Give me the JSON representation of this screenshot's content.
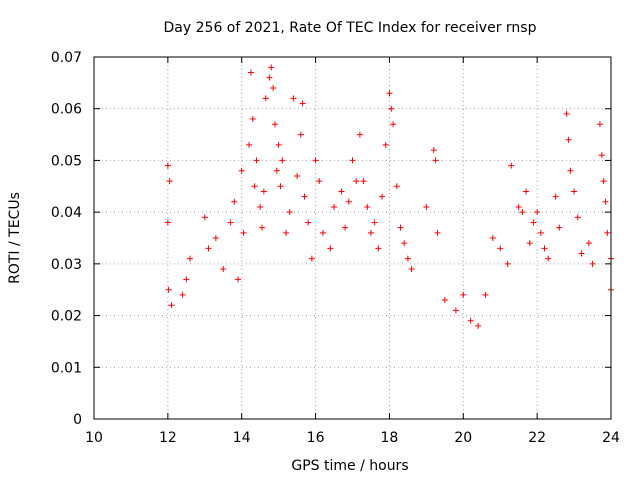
{
  "chart_data": {
    "type": "scatter",
    "title": "Day 256 of 2021, Rate Of TEC Index for receiver rnsp",
    "xlabel": "GPS time / hours",
    "ylabel": "ROTI / TECUs",
    "xlim": [
      10,
      24
    ],
    "ylim": [
      0,
      0.07
    ],
    "x_ticks": [
      10,
      12,
      14,
      16,
      18,
      20,
      22,
      24
    ],
    "x_tick_labels": [
      "10",
      "12",
      "14",
      "16",
      "18",
      "20",
      "22",
      "24"
    ],
    "y_ticks": [
      0,
      0.01,
      0.02,
      0.03,
      0.04,
      0.05,
      0.06,
      0.07
    ],
    "y_tick_labels": [
      "0",
      "0.01",
      "0.02",
      "0.03",
      "0.04",
      "0.05",
      "0.06",
      "0.07"
    ],
    "grid": true,
    "marker": "+",
    "color": "#ff0000",
    "series": [
      {
        "name": "ROTI",
        "points": [
          [
            12.0,
            0.038
          ],
          [
            12.0,
            0.049
          ],
          [
            12.05,
            0.046
          ],
          [
            12.02,
            0.025
          ],
          [
            12.1,
            0.022
          ],
          [
            12.4,
            0.024
          ],
          [
            12.5,
            0.027
          ],
          [
            12.6,
            0.031
          ],
          [
            13.0,
            0.039
          ],
          [
            13.1,
            0.033
          ],
          [
            13.3,
            0.035
          ],
          [
            13.5,
            0.029
          ],
          [
            13.7,
            0.038
          ],
          [
            13.8,
            0.042
          ],
          [
            13.9,
            0.027
          ],
          [
            14.0,
            0.048
          ],
          [
            14.05,
            0.036
          ],
          [
            14.2,
            0.053
          ],
          [
            14.25,
            0.067
          ],
          [
            14.3,
            0.058
          ],
          [
            14.35,
            0.045
          ],
          [
            14.4,
            0.05
          ],
          [
            14.5,
            0.041
          ],
          [
            14.55,
            0.037
          ],
          [
            14.6,
            0.044
          ],
          [
            14.65,
            0.062
          ],
          [
            14.75,
            0.066
          ],
          [
            14.8,
            0.068
          ],
          [
            14.85,
            0.064
          ],
          [
            14.9,
            0.057
          ],
          [
            14.95,
            0.048
          ],
          [
            15.0,
            0.053
          ],
          [
            15.05,
            0.045
          ],
          [
            15.1,
            0.05
          ],
          [
            15.2,
            0.036
          ],
          [
            15.3,
            0.04
          ],
          [
            15.4,
            0.062
          ],
          [
            15.5,
            0.047
          ],
          [
            15.6,
            0.055
          ],
          [
            15.65,
            0.061
          ],
          [
            15.7,
            0.043
          ],
          [
            15.8,
            0.038
          ],
          [
            15.9,
            0.031
          ],
          [
            16.0,
            0.05
          ],
          [
            16.1,
            0.046
          ],
          [
            16.2,
            0.036
          ],
          [
            16.4,
            0.033
          ],
          [
            16.5,
            0.041
          ],
          [
            16.7,
            0.044
          ],
          [
            16.8,
            0.037
          ],
          [
            16.9,
            0.042
          ],
          [
            17.0,
            0.05
          ],
          [
            17.1,
            0.046
          ],
          [
            17.2,
            0.055
          ],
          [
            17.3,
            0.046
          ],
          [
            17.4,
            0.041
          ],
          [
            17.5,
            0.036
          ],
          [
            17.6,
            0.038
          ],
          [
            17.7,
            0.033
          ],
          [
            17.8,
            0.043
          ],
          [
            17.9,
            0.053
          ],
          [
            18.0,
            0.063
          ],
          [
            18.05,
            0.06
          ],
          [
            18.1,
            0.057
          ],
          [
            18.2,
            0.045
          ],
          [
            18.3,
            0.037
          ],
          [
            18.4,
            0.034
          ],
          [
            18.5,
            0.031
          ],
          [
            18.6,
            0.029
          ],
          [
            19.0,
            0.041
          ],
          [
            19.2,
            0.052
          ],
          [
            19.25,
            0.05
          ],
          [
            19.3,
            0.036
          ],
          [
            19.5,
            0.023
          ],
          [
            19.8,
            0.021
          ],
          [
            20.0,
            0.024
          ],
          [
            20.2,
            0.019
          ],
          [
            20.4,
            0.018
          ],
          [
            20.6,
            0.024
          ],
          [
            20.8,
            0.035
          ],
          [
            21.0,
            0.033
          ],
          [
            21.2,
            0.03
          ],
          [
            21.3,
            0.049
          ],
          [
            21.5,
            0.041
          ],
          [
            21.6,
            0.04
          ],
          [
            21.7,
            0.044
          ],
          [
            21.8,
            0.034
          ],
          [
            21.9,
            0.038
          ],
          [
            22.0,
            0.04
          ],
          [
            22.1,
            0.036
          ],
          [
            22.2,
            0.033
          ],
          [
            22.3,
            0.031
          ],
          [
            22.5,
            0.043
          ],
          [
            22.6,
            0.037
          ],
          [
            22.8,
            0.059
          ],
          [
            22.85,
            0.054
          ],
          [
            22.9,
            0.048
          ],
          [
            23.0,
            0.044
          ],
          [
            23.1,
            0.039
          ],
          [
            23.2,
            0.032
          ],
          [
            23.4,
            0.034
          ],
          [
            23.5,
            0.03
          ],
          [
            23.7,
            0.057
          ],
          [
            23.75,
            0.051
          ],
          [
            23.8,
            0.046
          ],
          [
            23.85,
            0.042
          ],
          [
            23.9,
            0.036
          ],
          [
            24.0,
            0.031
          ],
          [
            24.0,
            0.025
          ]
        ]
      }
    ]
  }
}
